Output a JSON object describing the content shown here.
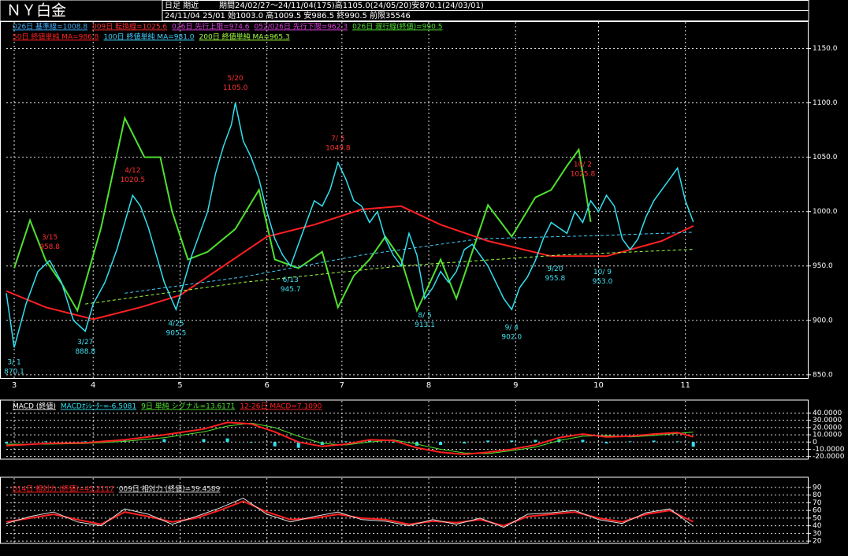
{
  "header": {
    "title": "ＮＹ白金",
    "mode": "日足 期近",
    "period": "期間24/02/27～24/11/04(175)高1105.0(24/05/20)安870.1(24/03/01)",
    "latest": "24/11/04 25/01 始1003.0 高1009.5 安986.5 終990.5 前限35546"
  },
  "chart_data": [
    {
      "type": "line",
      "indicators": [
        {
          "label": "026日 基準線=1008.8",
          "color": "#40b0ff"
        },
        {
          "label": "009日 転換線=1025.6",
          "color": "#ff3030"
        },
        {
          "label": "026日 先行上限=974.6",
          "color": "#e040e0"
        },
        {
          "label": "052/026日 先行下限=962.3",
          "color": "#e040e0"
        }
      ],
      "xlim": [
        0,
        203
      ],
      "ylim": [
        847,
        1175
      ],
      "xticks": [
        {
          "value": 2,
          "label": "3"
        },
        {
          "value": 22,
          "label": "4"
        },
        {
          "value": 44,
          "label": "5"
        },
        {
          "value": 66,
          "label": "6"
        },
        {
          "value": 85,
          "label": "7"
        },
        {
          "value": 107,
          "label": "8"
        },
        {
          "value": 129,
          "label": "9"
        },
        {
          "value": 150,
          "label": "10"
        },
        {
          "value": 172,
          "label": "11"
        }
      ],
      "yticks": [
        {
          "value": 850,
          "label": "850.0"
        },
        {
          "value": 900,
          "label": "900.0"
        },
        {
          "value": 950,
          "label": "950.0"
        },
        {
          "value": 1000,
          "label": "1000.0"
        },
        {
          "value": 1050,
          "label": "1050.0"
        },
        {
          "value": 1100,
          "label": "1100.0"
        },
        {
          "value": 1150,
          "label": "1150.0"
        }
      ],
      "grid": true,
      "series": [
        {
          "name": "026日 遅行線(終値)=990.5",
          "color": "#50e030",
          "width": 2,
          "x": [
            2,
            6,
            10,
            14,
            18,
            24,
            30,
            35,
            39,
            42,
            46,
            51,
            58,
            64,
            68,
            74,
            80,
            84,
            88,
            92,
            96,
            100,
            104,
            110,
            114,
            118,
            122,
            128,
            134,
            138,
            142,
            145,
            148
          ],
          "values": [
            948,
            992,
            955,
            934,
            909,
            985,
            1086,
            1050,
            1050,
            1000,
            956,
            963,
            984,
            1020,
            956,
            948,
            963,
            912,
            941,
            956,
            977,
            956,
            909,
            956,
            920,
            963,
            1006,
            977,
            1013,
            1020,
            1042,
            1057,
            990.5
          ]
        },
        {
          "name": "50日 終値単純 MA=986.8",
          "color": "#ff2020",
          "width": 2,
          "x": [
            0,
            10,
            22,
            34,
            44,
            66,
            78,
            90,
            100,
            110,
            122,
            138,
            152,
            166,
            174
          ],
          "values": [
            927,
            912,
            901,
            912,
            923,
            977,
            988,
            1002,
            1005,
            988,
            973,
            959,
            959,
            973,
            986.8
          ]
        },
        {
          "name": "100日 終値単純 MA=981.0",
          "color": "#40d0ff",
          "width": 1,
          "dash": true,
          "x": [
            30,
            60,
            90,
            120,
            150,
            174
          ],
          "values": [
            925,
            940,
            960,
            975,
            978,
            981.0
          ]
        },
        {
          "name": "200日 終値単純 MA=965.3",
          "color": "#a0ff40",
          "width": 1,
          "dash": true,
          "x": [
            20,
            60,
            100,
            140,
            174
          ],
          "values": [
            915,
            935,
            950,
            960,
            965.3
          ]
        },
        {
          "color": "#30e0f0",
          "width": 1.5,
          "x": [
            0,
            2,
            5,
            8,
            11,
            14,
            17,
            20,
            22,
            25,
            28,
            30,
            32,
            34,
            36,
            38,
            40,
            43,
            45,
            47,
            49,
            51,
            53,
            55,
            57,
            58,
            60,
            62,
            64,
            66,
            68,
            70,
            72,
            74,
            76,
            78,
            80,
            82,
            84,
            86,
            88,
            90,
            92,
            94,
            96,
            98,
            100,
            102,
            104,
            106,
            108,
            110,
            112,
            114,
            116,
            118,
            120,
            122,
            124,
            126,
            128,
            130,
            132,
            134,
            136,
            138,
            140,
            142,
            144,
            146,
            148,
            150,
            152,
            154,
            156,
            158,
            160,
            162,
            164,
            166,
            168,
            170,
            172,
            174
          ],
          "values": [
            925,
            875,
            915,
            945,
            955,
            935,
            900,
            890,
            915,
            935,
            965,
            990,
            1015,
            1005,
            985,
            960,
            935,
            910,
            935,
            960,
            980,
            1000,
            1035,
            1060,
            1080,
            1100,
            1065,
            1050,
            1030,
            1000,
            975,
            960,
            950,
            970,
            990,
            1010,
            1005,
            1020,
            1045,
            1030,
            1010,
            1005,
            990,
            1000,
            975,
            960,
            950,
            980,
            960,
            920,
            930,
            945,
            935,
            945,
            965,
            970,
            960,
            950,
            935,
            920,
            910,
            930,
            940,
            955,
            975,
            990,
            985,
            980,
            1000,
            990,
            1010,
            1000,
            1015,
            1005,
            975,
            965,
            975,
            995,
            1010,
            1020,
            1030,
            1040,
            1010,
            990.5
          ]
        }
      ],
      "annotations": [
        {
          "date": "3/ 1",
          "price": "870.1",
          "x": 2,
          "value": 870.1
        },
        {
          "date": "3/15",
          "price": "958.8",
          "x": 11,
          "value": 958.8
        },
        {
          "date": "3/27",
          "price": "888.8",
          "x": 20,
          "value": 888.8
        },
        {
          "date": "4/12",
          "price": "1020.5",
          "x": 32,
          "value": 1020.5
        },
        {
          "date": "4/25",
          "price": "905.5",
          "x": 43,
          "value": 905.5
        },
        {
          "date": "5/20",
          "price": "1105.0",
          "x": 58,
          "value": 1105.0
        },
        {
          "date": "6/13",
          "price": "945.7",
          "x": 72,
          "value": 945.7
        },
        {
          "date": "7/ 5",
          "price": "1049.8",
          "x": 84,
          "value": 1049.8
        },
        {
          "date": "8/ 5",
          "price": "913.1",
          "x": 106,
          "value": 913.1
        },
        {
          "date": "9/ 4",
          "price": "902.0",
          "x": 128,
          "value": 902.0
        },
        {
          "date": "9/20",
          "price": "955.8",
          "x": 139,
          "value": 955.8
        },
        {
          "date": "10/ 2",
          "price": "1025.8",
          "x": 146,
          "value": 1025.8
        },
        {
          "date": "10/ 9",
          "price": "953.0",
          "x": 151,
          "value": 953.0
        }
      ]
    },
    {
      "type": "line",
      "title": "MACD (終値)",
      "xlim": [
        0,
        203
      ],
      "ylim": [
        -23.6,
        47
      ],
      "yticks": [
        {
          "value": 40,
          "label": "40.0000"
        },
        {
          "value": 30,
          "label": "30.0000"
        },
        {
          "value": 20,
          "label": "20.0000"
        },
        {
          "value": 10,
          "label": "10.0000"
        },
        0,
        {
          "value": -10,
          "label": "-10.0000"
        },
        {
          "value": -20,
          "label": "-20.0000"
        }
      ],
      "x": [
        0,
        10,
        20,
        30,
        40,
        50,
        56,
        62,
        68,
        74,
        80,
        86,
        92,
        98,
        104,
        110,
        116,
        122,
        128,
        134,
        140,
        146,
        152,
        158,
        164,
        170,
        174
      ],
      "series": [
        {
          "name": "MACDｵｼﾚｰﾀｰ=-6.5081",
          "color": "#30e0f0",
          "type": "bar",
          "values": [
            -2,
            1,
            1,
            2,
            4,
            4,
            5,
            -1,
            -6,
            -8,
            -4,
            1,
            3,
            -1,
            -5,
            -4,
            -2,
            2,
            2,
            3,
            4,
            3,
            -2,
            1,
            2,
            1,
            -6.5081
          ]
        },
        {
          "name": "9日 単純 シグナル=13.6171",
          "color": "#50e030",
          "width": 1,
          "values": [
            -3,
            -3,
            -2,
            1,
            6,
            14,
            22,
            26,
            20,
            8,
            -2,
            -4,
            0,
            3,
            -3,
            -10,
            -15,
            -16,
            -12,
            -7,
            2,
            8,
            9,
            7,
            9,
            12,
            13.6171
          ]
        },
        {
          "name": "12-26日 MACD=7.1090",
          "color": "#ff2020",
          "width": 2,
          "values": [
            -5,
            -2,
            -1,
            3,
            10,
            18,
            27,
            25,
            14,
            0,
            -6,
            -3,
            3,
            2,
            -8,
            -14,
            -17,
            -14,
            -10,
            -4,
            6,
            11,
            7,
            8,
            11,
            13,
            7.109
          ]
        }
      ]
    },
    {
      "type": "line",
      "xlim": [
        0,
        203
      ],
      "ylim": [
        17,
        93
      ],
      "yticks": [
        20,
        30,
        40,
        50,
        60,
        70,
        80,
        90
      ],
      "x": [
        0,
        6,
        12,
        18,
        24,
        30,
        36,
        42,
        48,
        54,
        60,
        66,
        72,
        78,
        84,
        90,
        96,
        102,
        108,
        114,
        120,
        126,
        132,
        138,
        144,
        150,
        156,
        162,
        168,
        174
      ],
      "series": [
        {
          "name": "014日 相対力 (終値)=45.2117",
          "color": "#ff2020",
          "width": 2,
          "values": [
            45,
            50,
            55,
            48,
            42,
            58,
            52,
            45,
            50,
            60,
            72,
            58,
            48,
            50,
            55,
            50,
            48,
            42,
            46,
            44,
            48,
            40,
            52,
            55,
            58,
            50,
            45,
            55,
            60,
            45.2117
          ]
        },
        {
          "name": "009日 相対力 (終値)=39.4589",
          "color": "#e0e0e0",
          "width": 1,
          "values": [
            43,
            52,
            58,
            45,
            40,
            62,
            55,
            42,
            52,
            63,
            76,
            55,
            45,
            52,
            58,
            48,
            46,
            40,
            48,
            42,
            50,
            38,
            55,
            57,
            60,
            48,
            43,
            57,
            62,
            39.4589
          ]
        }
      ]
    }
  ]
}
